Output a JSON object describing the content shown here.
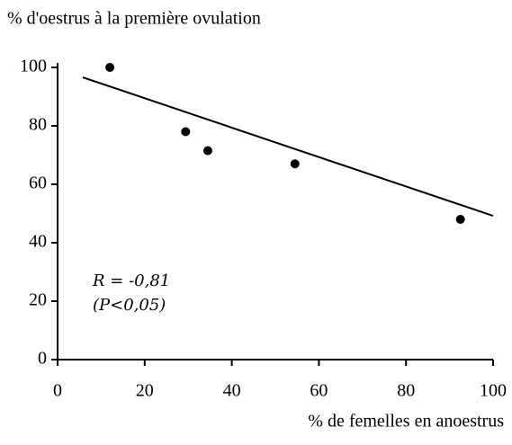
{
  "chart_data": {
    "type": "scatter",
    "ylabel": "% d'oestrus à la première ovulation",
    "xlabel": "% de femelles en anoestrus",
    "x": [
      12,
      29.4,
      34.5,
      54.5,
      92.5
    ],
    "y": [
      100,
      78,
      71.5,
      67,
      48
    ],
    "color": "#000000",
    "trend_line": {
      "x": [
        5.8,
        100
      ],
      "y": [
        96.6,
        49.2
      ]
    },
    "annotations": [
      "R = -0,81",
      "(P<0,05)"
    ],
    "xlim": [
      0,
      100
    ],
    "xticks": [
      0,
      20,
      40,
      60,
      80,
      100
    ],
    "ylim": [
      0,
      100
    ],
    "yticks": [
      0,
      20,
      40,
      60,
      80,
      100
    ],
    "grid": false
  }
}
